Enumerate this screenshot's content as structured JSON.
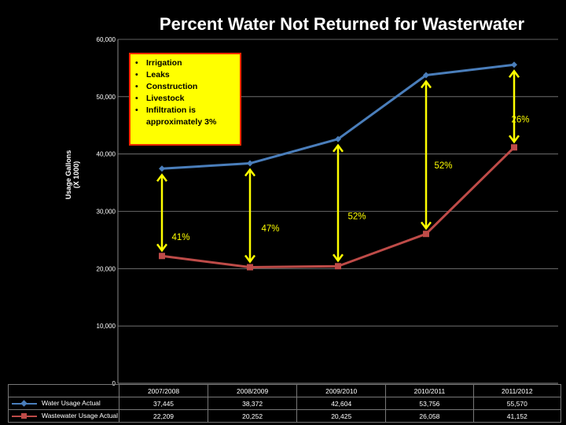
{
  "colors": {
    "water": "#4a7ebb",
    "wastewater": "#be4b48",
    "arrow": "#ffff00",
    "callout_bg": "#ffff00",
    "callout_border": "#ff2a00"
  },
  "chart_data": {
    "type": "line",
    "title": "Percent Water Not Returned for Wasterwater",
    "ylabel": "Usage Gallons\n(X 1000)",
    "xlabel": "",
    "ylim": [
      0,
      60000
    ],
    "yticks": [
      "0",
      "10,000",
      "20,000",
      "30,000",
      "40,000",
      "50,000",
      "60,000"
    ],
    "ytick_values": [
      0,
      10000,
      20000,
      30000,
      40000,
      50000,
      60000
    ],
    "categories": [
      "2007/2008",
      "2008/2009",
      "2009/2010",
      "2010/2011",
      "2011/2012"
    ],
    "series": [
      {
        "name": "Water Usage Actual",
        "values": [
          37445,
          38372,
          42604,
          53756,
          55570
        ],
        "labels": [
          "37,445",
          "38,372",
          "42,604",
          "53,756",
          "55,570"
        ]
      },
      {
        "name": "Wastewater Usage Actual",
        "values": [
          22209,
          20252,
          20425,
          26058,
          41152
        ],
        "labels": [
          "22,209",
          "20,252",
          "20,425",
          "26,058",
          "41,152"
        ]
      }
    ],
    "annotations": [
      {
        "text": "41%",
        "category": "2007/2008"
      },
      {
        "text": "47%",
        "category": "2008/2009"
      },
      {
        "text": "52%",
        "category": "2009/2010"
      },
      {
        "text": "52%",
        "category": "2010/2011"
      },
      {
        "text": "26%",
        "category": "2011/2012"
      }
    ],
    "gridlines": true,
    "legend": "bottom data table"
  },
  "callout": {
    "items": [
      "Irrigation",
      "Leaks",
      "Construction",
      "Livestock",
      "Infiltration is approximately  3%"
    ]
  }
}
